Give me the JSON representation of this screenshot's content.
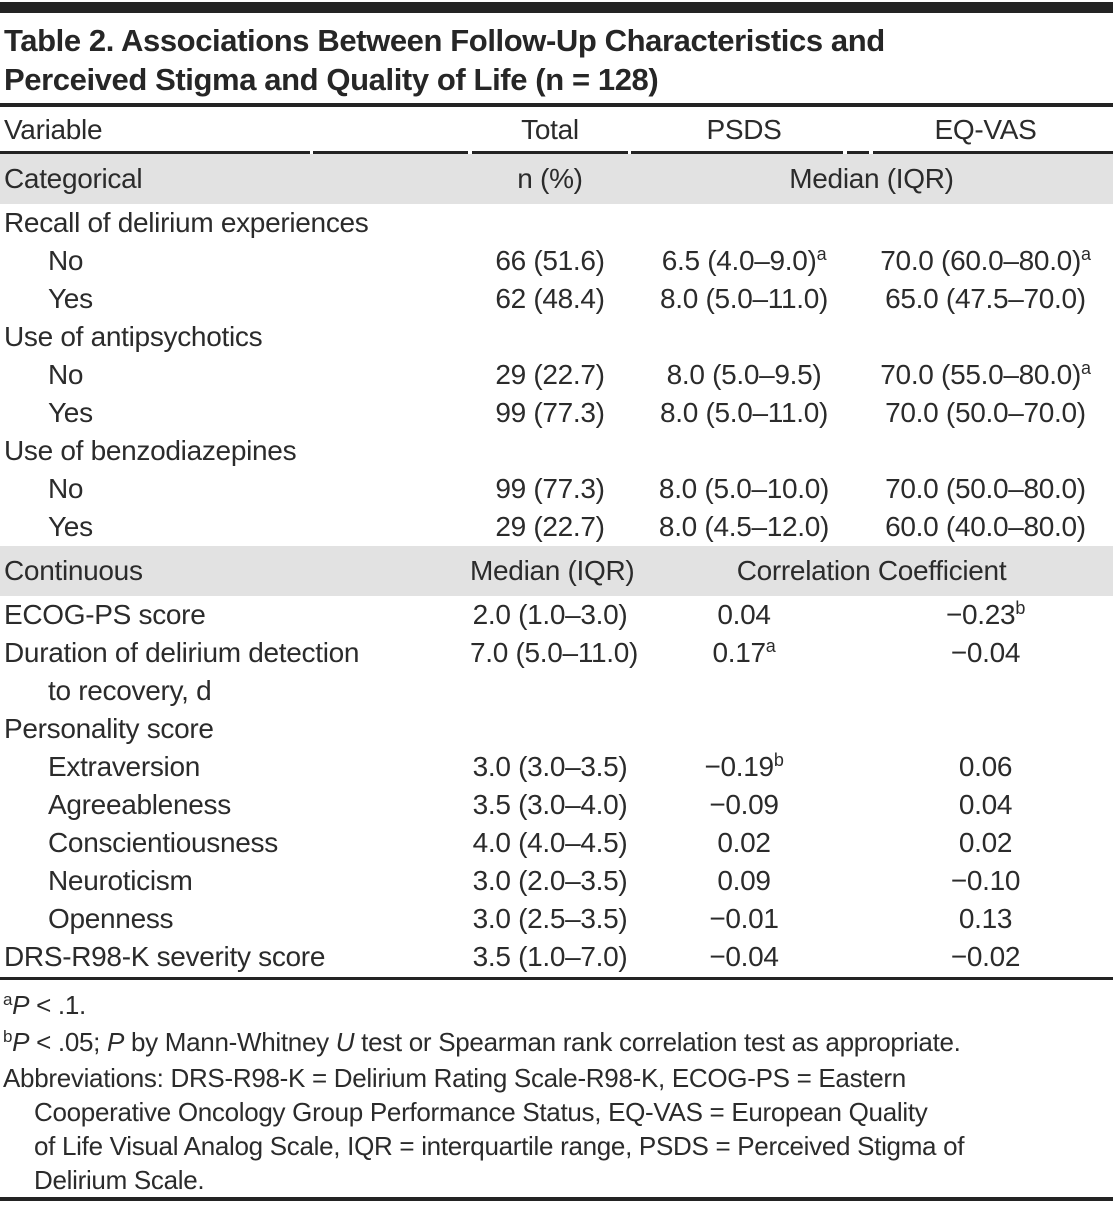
{
  "title": {
    "line1": "Table 2. Associations Between Follow-Up Characteristics and",
    "line2": "Perceived Stigma and Quality of Life (n = 128)"
  },
  "header": {
    "variable": "Variable",
    "total": "Total",
    "psds": "PSDS",
    "eqvas": "EQ-VAS"
  },
  "sections": {
    "categorical": {
      "label": "Categorical",
      "total": "n (%)",
      "span": "Median (IQR)"
    },
    "continuous": {
      "label": "Continuous",
      "total": "Median (IQR)",
      "span": "Correlation Coefficient"
    }
  },
  "rows_cat": [
    {
      "label": "Recall of delirium experiences"
    },
    {
      "label": "No",
      "total": {
        "t": "66 (51.6)"
      },
      "psds": {
        "t": "6.5 (4.0–9.0)",
        "s": "a"
      },
      "eqvas": {
        "t": "70.0 (60.0–80.0)",
        "s": "a"
      }
    },
    {
      "label": "Yes",
      "total": {
        "t": "62 (48.4)"
      },
      "psds": {
        "t": "8.0 (5.0–11.0)"
      },
      "eqvas": {
        "t": "65.0 (47.5–70.0)"
      }
    },
    {
      "label": "Use of antipsychotics"
    },
    {
      "label": "No",
      "total": {
        "t": "29 (22.7)"
      },
      "psds": {
        "t": "8.0 (5.0–9.5)"
      },
      "eqvas": {
        "t": "70.0 (55.0–80.0)",
        "s": "a"
      }
    },
    {
      "label": "Yes",
      "total": {
        "t": "99 (77.3)"
      },
      "psds": {
        "t": "8.0 (5.0–11.0)"
      },
      "eqvas": {
        "t": "70.0 (50.0–70.0)"
      }
    },
    {
      "label": "Use of benzodiazepines"
    },
    {
      "label": "No",
      "total": {
        "t": "99 (77.3)"
      },
      "psds": {
        "t": "8.0 (5.0–10.0)"
      },
      "eqvas": {
        "t": "70.0 (50.0–80.0)"
      }
    },
    {
      "label": "Yes",
      "total": {
        "t": "29 (22.7)"
      },
      "psds": {
        "t": "8.0 (4.5–12.0)"
      },
      "eqvas": {
        "t": "60.0 (40.0–80.0)"
      }
    }
  ],
  "rows_cont": [
    {
      "label": "ECOG-PS score",
      "total": {
        "t": "2.0 (1.0–3.0)"
      },
      "psds": {
        "t": "0.04"
      },
      "eqvas": {
        "t": "−0.23",
        "s": "b"
      }
    },
    {
      "label": "Duration of delirium detection",
      "total": {
        "t": "7.0 (5.0–11.0)"
      },
      "psds": {
        "t": "0.17",
        "s": "a"
      },
      "eqvas": {
        "t": "−0.04"
      }
    },
    {
      "label": "to recovery, d"
    },
    {
      "label": "Personality score"
    },
    {
      "label": "Extraversion",
      "total": {
        "t": "3.0 (3.0–3.5)"
      },
      "psds": {
        "t": "−0.19",
        "s": "b"
      },
      "eqvas": {
        "t": "0.06"
      }
    },
    {
      "label": "Agreeableness",
      "total": {
        "t": "3.5 (3.0–4.0)"
      },
      "psds": {
        "t": "−0.09"
      },
      "eqvas": {
        "t": "0.04"
      }
    },
    {
      "label": "Conscientiousness",
      "total": {
        "t": "4.0 (4.0–4.5)"
      },
      "psds": {
        "t": "0.02"
      },
      "eqvas": {
        "t": "0.02"
      }
    },
    {
      "label": "Neuroticism",
      "total": {
        "t": "3.0 (2.0–3.5)"
      },
      "psds": {
        "t": "0.09"
      },
      "eqvas": {
        "t": "−0.10"
      }
    },
    {
      "label": "Openness",
      "total": {
        "t": "3.0 (2.5–3.5)"
      },
      "psds": {
        "t": "−0.01"
      },
      "eqvas": {
        "t": "0.13"
      }
    },
    {
      "label": "DRS-R98-K severity score",
      "total": {
        "t": "3.5 (1.0–7.0)"
      },
      "psds": {
        "t": "−0.04"
      },
      "eqvas": {
        "t": "−0.02"
      }
    }
  ],
  "footnotes": {
    "a": {
      "sup": "a",
      "p": "P",
      "rest": " < .1."
    },
    "b": {
      "sup": "b",
      "p1": "P",
      "t1": " < .05; ",
      "p2": "P",
      "t2": " by Mann-Whitney ",
      "u": "U",
      "t3": " test or Spearman rank correlation test as appropriate."
    },
    "abbr_line1": "Abbreviations: DRS-R98-K = Delirium Rating Scale-R98-K, ECOG-PS = Eastern",
    "abbr_line2": "Cooperative Oncology Group Performance Status, EQ-VAS = European Quality",
    "abbr_line3": "of Life Visual Analog Scale, IQR = interquartile range, PSDS = Perceived Stigma of",
    "abbr_line4": "Delirium Scale."
  },
  "colors": {
    "band_gray": "#e2e2e2",
    "rule_black": "#232323",
    "text": "#2b2b2b",
    "background": "#ffffff"
  }
}
